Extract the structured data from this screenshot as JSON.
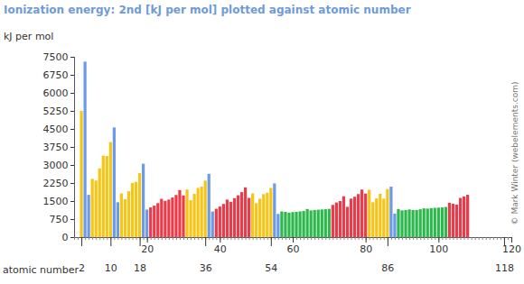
{
  "chart_data": {
    "type": "bar",
    "title": "Ionization energy: 2nd [kJ per mol] plotted against atomic number",
    "y_label": "kJ per mol",
    "x_label": "atomic number",
    "annotation": "© Mark Winter (webelements.com)",
    "x": [
      2,
      3,
      4,
      5,
      6,
      7,
      8,
      9,
      10,
      11,
      12,
      13,
      14,
      15,
      16,
      17,
      18,
      19,
      20,
      21,
      22,
      23,
      24,
      25,
      26,
      27,
      28,
      29,
      30,
      31,
      32,
      33,
      34,
      35,
      36,
      37,
      38,
      39,
      40,
      41,
      42,
      43,
      44,
      45,
      46,
      47,
      48,
      49,
      50,
      51,
      52,
      53,
      54,
      55,
      56,
      57,
      58,
      59,
      60,
      61,
      62,
      63,
      64,
      65,
      66,
      67,
      68,
      69,
      70,
      71,
      72,
      73,
      74,
      75,
      76,
      77,
      78,
      79,
      80,
      81,
      82,
      83,
      84,
      85,
      86,
      87,
      88,
      89,
      90,
      91,
      92,
      93,
      94,
      95,
      96,
      97,
      98,
      99,
      100,
      101,
      102,
      103,
      104,
      105,
      106,
      107,
      108
    ],
    "values": [
      5250.5,
      7298.1,
      1757.1,
      2427.1,
      2352.6,
      2856,
      3388.3,
      3374.2,
      3952.3,
      4562,
      1450.7,
      1816.7,
      1577.1,
      1907,
      2252,
      2298,
      2665.8,
      3052,
      1145.4,
      1235,
      1309.8,
      1414,
      1590.6,
      1509,
      1561.9,
      1648,
      1753,
      1957.9,
      1733.3,
      1979.3,
      1537.5,
      1798,
      2045,
      2103,
      2350.4,
      2633,
      1064.2,
      1180,
      1270,
      1380,
      1560,
      1470,
      1620,
      1740,
      1870,
      2070,
      1631.4,
      1820.7,
      1411.8,
      1594.9,
      1790,
      1845.9,
      2046.4,
      2234.3,
      965.2,
      1067,
      1050,
      1018,
      1040,
      1050,
      1070,
      1085,
      1170,
      1110,
      1130,
      1140,
      1150,
      1160,
      1174.8,
      1340,
      1440,
      1500,
      1700,
      1260,
      1600,
      1680,
      1791,
      1980,
      1810,
      1971,
      1450.5,
      1610,
      1800,
      1600,
      2000,
      2100,
      979,
      1170,
      1110,
      1128,
      1150,
      1128,
      1128,
      1158,
      1196,
      1186,
      1206,
      1216,
      1225,
      1235,
      1254,
      1428,
      1390,
      1350,
      1630,
      1690,
      1760
    ],
    "colors": [
      "#f5c518",
      "#6b9ae8",
      "#6b9ae8",
      "#f5c518",
      "#f5c518",
      "#f5c518",
      "#f5c518",
      "#f5c518",
      "#f5c518",
      "#6b9ae8",
      "#6b9ae8",
      "#f5c518",
      "#f5c518",
      "#f5c518",
      "#f5c518",
      "#f5c518",
      "#f5c518",
      "#6b9ae8",
      "#6b9ae8",
      "#ea3b4a",
      "#ea3b4a",
      "#ea3b4a",
      "#ea3b4a",
      "#ea3b4a",
      "#ea3b4a",
      "#ea3b4a",
      "#ea3b4a",
      "#ea3b4a",
      "#ea3b4a",
      "#f5c518",
      "#f5c518",
      "#f5c518",
      "#f5c518",
      "#f5c518",
      "#f5c518",
      "#6b9ae8",
      "#6b9ae8",
      "#ea3b4a",
      "#ea3b4a",
      "#ea3b4a",
      "#ea3b4a",
      "#ea3b4a",
      "#ea3b4a",
      "#ea3b4a",
      "#ea3b4a",
      "#ea3b4a",
      "#ea3b4a",
      "#f5c518",
      "#f5c518",
      "#f5c518",
      "#f5c518",
      "#f5c518",
      "#f5c518",
      "#6b9ae8",
      "#6b9ae8",
      "#2db84d",
      "#2db84d",
      "#2db84d",
      "#2db84d",
      "#2db84d",
      "#2db84d",
      "#2db84d",
      "#2db84d",
      "#2db84d",
      "#2db84d",
      "#2db84d",
      "#2db84d",
      "#2db84d",
      "#2db84d",
      "#ea3b4a",
      "#ea3b4a",
      "#ea3b4a",
      "#ea3b4a",
      "#ea3b4a",
      "#ea3b4a",
      "#ea3b4a",
      "#ea3b4a",
      "#ea3b4a",
      "#ea3b4a",
      "#f5c518",
      "#f5c518",
      "#f5c518",
      "#f5c518",
      "#f5c518",
      "#f5c518",
      "#6b9ae8",
      "#6b9ae8",
      "#2db84d",
      "#2db84d",
      "#2db84d",
      "#2db84d",
      "#2db84d",
      "#2db84d",
      "#2db84d",
      "#2db84d",
      "#2db84d",
      "#2db84d",
      "#2db84d",
      "#2db84d",
      "#2db84d",
      "#2db84d",
      "#ea3b4a",
      "#ea3b4a",
      "#ea3b4a",
      "#ea3b4a",
      "#ea3b4a",
      "#ea3b4a"
    ],
    "xlim": [
      0,
      120
    ],
    "ylim": [
      0,
      7500
    ],
    "xticks": [
      20,
      40,
      60,
      80,
      100,
      120
    ],
    "noble_gas_ticks": [
      2,
      10,
      18,
      36,
      54,
      86,
      118
    ],
    "yticks": [
      0,
      750,
      1500,
      2250,
      3000,
      3750,
      4500,
      5250,
      6000,
      6750,
      7500
    ]
  }
}
